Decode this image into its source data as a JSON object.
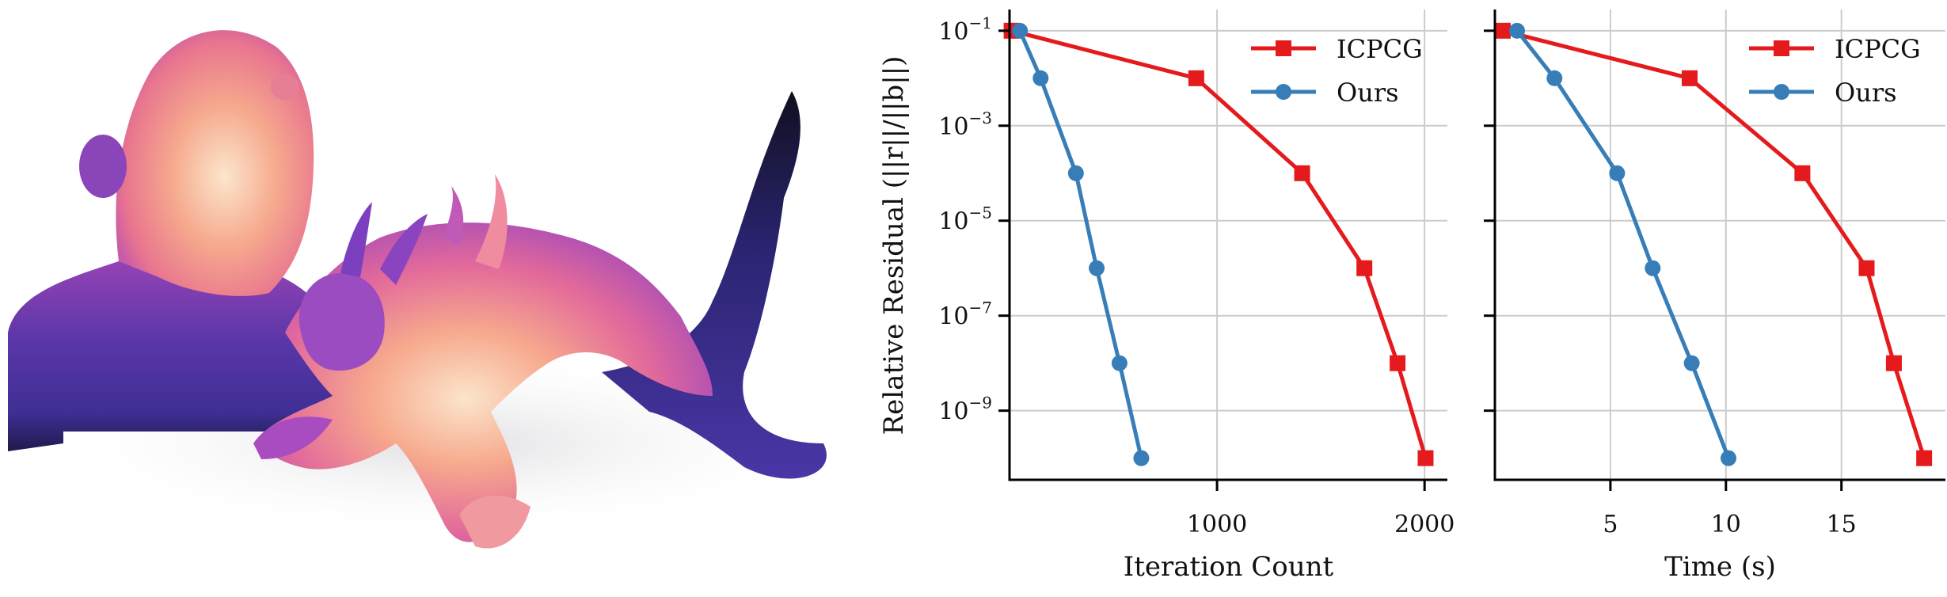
{
  "figure": {
    "render_panel": {
      "description": "3D render of a girl bust and a dragon colored by a magma-like colormap",
      "colormap": [
        "#1b1340",
        "#4a2f9a",
        "#8b3fb8",
        "#e0609a",
        "#f59a8a",
        "#fbe3c8"
      ]
    },
    "legend": {
      "items": [
        {
          "label": "ICPCG",
          "color": "#e41a1c",
          "marker": "square"
        },
        {
          "label": "Ours",
          "color": "#377eb8",
          "marker": "circle"
        }
      ]
    }
  },
  "chart_data": [
    {
      "type": "line",
      "title": "",
      "xlabel": "Iteration Count",
      "ylabel": "Relative Residual (||r||/||b||)",
      "yscale": "log",
      "xlim": [
        0,
        2110
      ],
      "ylim": [
        3.5e-11,
        0.28
      ],
      "xticks": [
        1000,
        2000
      ],
      "xtick_labels": [
        "1000",
        "2000"
      ],
      "yticks": [
        0.1,
        0.001,
        1e-05,
        1e-07,
        1e-09
      ],
      "ytick_labels": [
        {
          "base": "10",
          "exp": "−1"
        },
        {
          "base": "10",
          "exp": "−3"
        },
        {
          "base": "10",
          "exp": "−5"
        },
        {
          "base": "10",
          "exp": "−7"
        },
        {
          "base": "10",
          "exp": "−9"
        }
      ],
      "grid": true,
      "legend_position": "upper right",
      "series": [
        {
          "name": "ICPCG",
          "color": "#e41a1c",
          "marker": "square",
          "x": [
            10,
            900,
            1410,
            1710,
            1870,
            2005
          ],
          "y": [
            0.1,
            0.01,
            0.0001,
            1e-06,
            1e-08,
            1e-10
          ]
        },
        {
          "name": "Ours",
          "color": "#377eb8",
          "marker": "circle",
          "x": [
            50,
            150,
            320,
            420,
            530,
            635
          ],
          "y": [
            0.1,
            0.01,
            0.0001,
            1e-06,
            1e-08,
            1e-10
          ]
        }
      ]
    },
    {
      "type": "line",
      "title": "",
      "xlabel": "Time (s)",
      "ylabel": "",
      "yscale": "log",
      "xlim": [
        0,
        19.5
      ],
      "ylim": [
        3.5e-11,
        0.28
      ],
      "xticks": [
        5,
        10,
        15
      ],
      "xtick_labels": [
        "5",
        "10",
        "15"
      ],
      "yticks": [
        0.1,
        0.001,
        1e-05,
        1e-07,
        1e-09
      ],
      "grid": true,
      "legend_position": "upper right",
      "series": [
        {
          "name": "ICPCG",
          "color": "#e41a1c",
          "marker": "square",
          "x": [
            0.34,
            8.43,
            13.31,
            16.09,
            17.27,
            18.58
          ],
          "y": [
            0.1,
            0.01,
            0.0001,
            1e-06,
            1e-08,
            1e-10
          ]
        },
        {
          "name": "Ours",
          "color": "#377eb8",
          "marker": "circle",
          "x": [
            0.96,
            2.58,
            5.29,
            6.83,
            8.52,
            10.11
          ],
          "y": [
            0.1,
            0.01,
            0.0001,
            1e-06,
            1e-08,
            1e-10
          ]
        }
      ]
    }
  ]
}
